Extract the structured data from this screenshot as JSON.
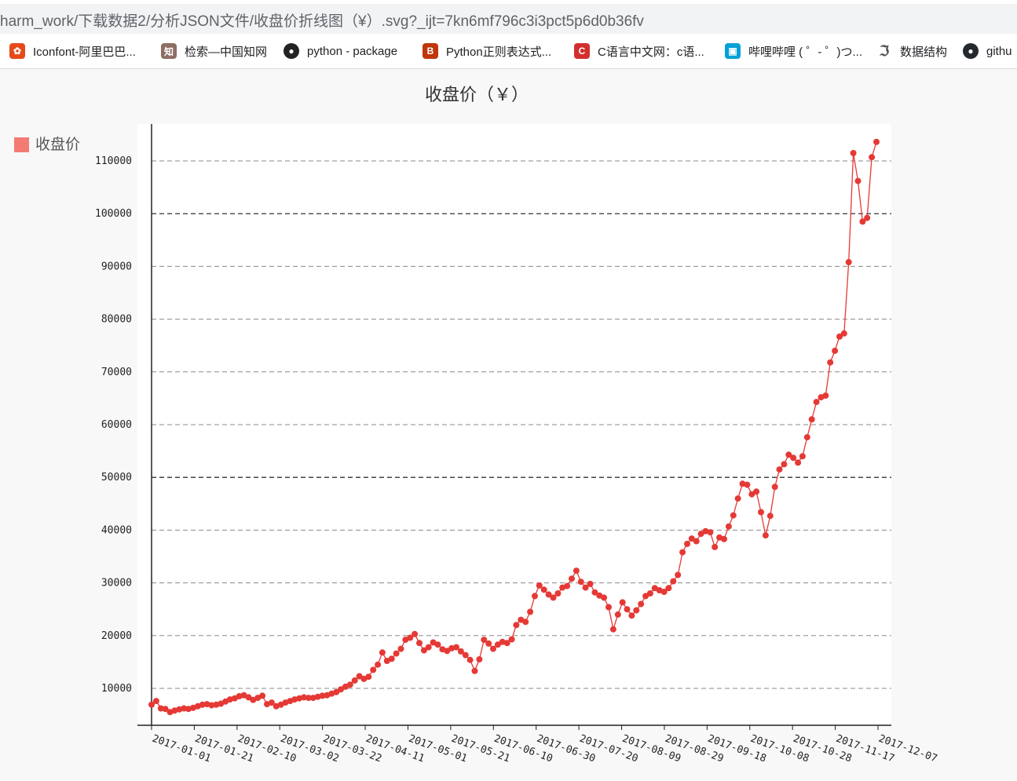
{
  "browser": {
    "url": "harm_work/下载数据2/分析JSON文件/收盘价折线图（¥）.svg?_ijt=7kn6mf796c3i3pct5p6d0b36fv",
    "bookmarks": [
      {
        "label": "Iconfont-阿里巴巴...",
        "icon": "iconfont-icon",
        "color": "#e64a19",
        "glyph": "✿"
      },
      {
        "label": "检索—中国知网",
        "icon": "cnki-icon",
        "color": "#8d6e63",
        "glyph": "知"
      },
      {
        "label": "python - package",
        "icon": "python-package-icon",
        "color": "#222222",
        "glyph": "●"
      },
      {
        "label": "Python正则表达式...",
        "icon": "runoob-icon",
        "color": "#bf360c",
        "glyph": "B"
      },
      {
        "label": "C语言中文网：c语...",
        "icon": "c-language-icon",
        "color": "#d32f2f",
        "glyph": "C"
      },
      {
        "label": "哔哩哔哩 ( ゜- ゜)つ...",
        "icon": "bilibili-icon",
        "color": "#00a1d6",
        "glyph": "▣"
      },
      {
        "label": "数据结构",
        "icon": "data-structure-icon",
        "color": "#555555",
        "glyph": "ℑ"
      },
      {
        "label": "githu",
        "icon": "github-icon",
        "color": "#24292e",
        "glyph": "●"
      }
    ]
  },
  "chart_data": {
    "type": "line",
    "title": "收盘价（￥）",
    "legend": "收盘价",
    "legend_position": "left",
    "grid": "horizontal dashed",
    "ylim": [
      3000,
      117000
    ],
    "yticks": [
      "10000",
      "20000",
      "30000",
      "40000",
      "50000",
      "60000",
      "70000",
      "80000",
      "90000",
      "100000",
      "110000"
    ],
    "x_labels": [
      "2017-01-01",
      "2017-01-21",
      "2017-02-10",
      "2017-03-02",
      "2017-03-22",
      "2017-04-11",
      "2017-05-01",
      "2017-05-21",
      "2017-06-10",
      "2017-06-30",
      "2017-07-20",
      "2017-08-09",
      "2017-08-29",
      "2017-09-18",
      "2017-10-08",
      "2017-10-28",
      "2017-11-17",
      "2017-12-07"
    ],
    "series": [
      {
        "name": "收盘价",
        "color": "#e53935",
        "start": "2017-01-01",
        "step_days": 3,
        "values": [
          6900,
          7600,
          6200,
          6100,
          5500,
          5800,
          6000,
          6200,
          6100,
          6300,
          6600,
          6900,
          7000,
          6800,
          6900,
          7100,
          7500,
          7900,
          8100,
          8500,
          8700,
          8300,
          7800,
          8200,
          8600,
          7000,
          7300,
          6600,
          6900,
          7300,
          7600,
          7900,
          8100,
          8300,
          8200,
          8200,
          8400,
          8600,
          8700,
          9000,
          9300,
          9800,
          10300,
          10700,
          11500,
          12300,
          11800,
          12200,
          13500,
          14500,
          16800,
          15200,
          15600,
          16600,
          17500,
          19200,
          19600,
          20300,
          18600,
          17200,
          17800,
          18700,
          18300,
          17400,
          17100,
          17600,
          17800,
          17000,
          16300,
          15400,
          13300,
          15500,
          19200,
          18500,
          17500,
          18300,
          18800,
          18600,
          19300,
          22000,
          23000,
          22600,
          24500,
          27500,
          29500,
          28700,
          27800,
          27200,
          28000,
          29100,
          29400,
          30800,
          32300,
          30200,
          29100,
          29800,
          28200,
          27600,
          27200,
          25400,
          21200,
          24000,
          26300,
          25000,
          23800,
          24800,
          26000,
          27500,
          28000,
          29000,
          28600,
          28300,
          29000,
          30300,
          31500,
          35800,
          37400,
          38400,
          37900,
          39300,
          39800,
          39600,
          36800,
          38600,
          38300,
          40700,
          42800,
          46000,
          48800,
          48600,
          46800,
          47300,
          43400,
          39000,
          42700,
          48200,
          51500,
          52500,
          54300,
          53700,
          52800,
          54000,
          57600,
          61000,
          64300,
          65200,
          65500,
          71800,
          74000,
          76700,
          77300,
          90800,
          111500,
          106200,
          98500,
          99200,
          110700,
          113600
        ]
      }
    ]
  }
}
